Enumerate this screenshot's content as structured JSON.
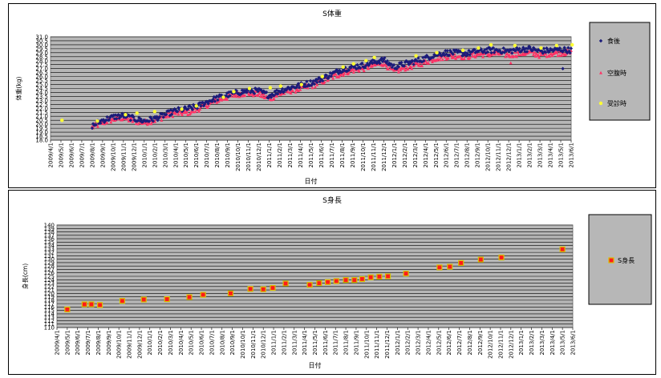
{
  "colors": {
    "plot_bg": "#b7b7b7",
    "grid": "#000000",
    "series_after_meal": "#1c1c7a",
    "series_fasting": "#ff3366",
    "series_visit": "#ffff33",
    "height_marker_fill": "#ff1a1a",
    "height_marker_edge": "#d8c000"
  },
  "chart_data": [
    {
      "type": "scatter",
      "title": "S体重",
      "xlabel": "日付",
      "ylabel": "体重(kg)",
      "ylim": [
        18.0,
        31.0
      ],
      "ytick_step": 0.5,
      "ytick_labels": [
        "18.0",
        "18.5",
        "19.0",
        "19.5",
        "20.0",
        "20.5",
        "21.0",
        "21.5",
        "22.0",
        "22.5",
        "23.0",
        "23.5",
        "24.0",
        "24.5",
        "25.0",
        "25.5",
        "26.0",
        "26.5",
        "27.0",
        "27.5",
        "28.0",
        "28.5",
        "29.0",
        "29.5",
        "30.0",
        "30.5",
        "31.0"
      ],
      "xtick_labels": [
        "2009/4/1",
        "2009/5/1",
        "2009/6/1",
        "2009/7/1",
        "2009/8/1",
        "2009/9/1",
        "2009/10/1",
        "2009/11/1",
        "2009/12/1",
        "2010/1/1",
        "2010/2/1",
        "2010/3/1",
        "2010/4/1",
        "2010/5/1",
        "2010/6/1",
        "2010/7/1",
        "2010/8/1",
        "2010/9/1",
        "2010/10/1",
        "2010/11/1",
        "2010/12/1",
        "2011/1/1",
        "2011/2/1",
        "2011/3/1",
        "2011/4/1",
        "2011/5/1",
        "2011/6/1",
        "2011/7/1",
        "2011/8/1",
        "2011/9/1",
        "2011/10/1",
        "2011/11/1",
        "2011/12/1",
        "2012/1/1",
        "2012/2/1",
        "2012/3/1",
        "2012/4/1",
        "2012/5/1",
        "2012/6/1",
        "2012/7/1",
        "2012/8/1",
        "2012/9/1",
        "2012/10/1",
        "2012/11/1",
        "2012/12/1",
        "2013/1/1",
        "2013/2/1",
        "2013/3/1",
        "2013/4/1",
        "2013/5/1",
        "2013/6/1"
      ],
      "x_unit": "months since 2009/4/1",
      "legend_position": "right",
      "grid": true,
      "series": [
        {
          "name": "食後",
          "marker": "diamond",
          "trend": [
            [
              4.0,
              19.8
            ],
            [
              5.0,
              20.5
            ],
            [
              6.0,
              20.9
            ],
            [
              7.0,
              21.1
            ],
            [
              8.0,
              20.7
            ],
            [
              9.0,
              20.4
            ],
            [
              10.0,
              20.7
            ],
            [
              11.0,
              21.2
            ],
            [
              12.0,
              21.7
            ],
            [
              13.0,
              21.9
            ],
            [
              14.0,
              22.2
            ],
            [
              15.0,
              22.8
            ],
            [
              16.0,
              23.3
            ],
            [
              17.0,
              23.7
            ],
            [
              18.0,
              24.0
            ],
            [
              19.0,
              24.2
            ],
            [
              20.0,
              24.2
            ],
            [
              21.0,
              23.6
            ],
            [
              22.0,
              24.2
            ],
            [
              23.0,
              24.6
            ],
            [
              24.0,
              24.9
            ],
            [
              25.0,
              25.2
            ],
            [
              26.0,
              25.7
            ],
            [
              27.0,
              26.3
            ],
            [
              28.0,
              26.9
            ],
            [
              29.0,
              27.2
            ],
            [
              30.0,
              27.4
            ],
            [
              31.0,
              27.8
            ],
            [
              32.0,
              28.1
            ],
            [
              33.0,
              27.2
            ],
            [
              34.0,
              27.6
            ],
            [
              35.0,
              27.9
            ],
            [
              36.0,
              28.3
            ],
            [
              37.0,
              28.8
            ],
            [
              38.0,
              29.0
            ],
            [
              39.0,
              29.0
            ],
            [
              40.0,
              28.9
            ],
            [
              41.0,
              29.2
            ],
            [
              42.0,
              29.3
            ],
            [
              43.0,
              29.3
            ],
            [
              44.0,
              29.2
            ],
            [
              45.0,
              29.4
            ],
            [
              46.0,
              29.5
            ],
            [
              47.0,
              29.2
            ],
            [
              48.0,
              29.3
            ],
            [
              49.0,
              29.4
            ],
            [
              50.0,
              29.3
            ]
          ],
          "outliers": [
            [
              49.2,
              27.0
            ]
          ]
        },
        {
          "name": "空腹時",
          "marker": "triangle",
          "trend": [
            [
              4.0,
              19.6
            ],
            [
              5.0,
              20.2
            ],
            [
              6.0,
              20.6
            ],
            [
              7.0,
              20.8
            ],
            [
              8.0,
              20.4
            ],
            [
              9.0,
              20.2
            ],
            [
              10.0,
              20.5
            ],
            [
              11.0,
              21.0
            ],
            [
              12.0,
              21.4
            ],
            [
              13.0,
              21.4
            ],
            [
              14.0,
              21.8
            ],
            [
              15.0,
              22.4
            ],
            [
              16.0,
              23.0
            ],
            [
              17.0,
              23.4
            ],
            [
              18.0,
              23.8
            ],
            [
              19.0,
              23.9
            ],
            [
              20.0,
              23.8
            ],
            [
              21.0,
              23.2
            ],
            [
              22.0,
              23.8
            ],
            [
              23.0,
              24.2
            ],
            [
              24.0,
              24.5
            ],
            [
              25.0,
              24.8
            ],
            [
              26.0,
              25.3
            ],
            [
              27.0,
              25.9
            ],
            [
              28.0,
              26.4
            ],
            [
              29.0,
              26.8
            ],
            [
              30.0,
              27.0
            ],
            [
              31.0,
              27.4
            ],
            [
              32.0,
              27.7
            ],
            [
              33.0,
              26.6
            ],
            [
              34.0,
              27.1
            ],
            [
              35.0,
              27.4
            ],
            [
              36.0,
              27.8
            ],
            [
              37.0,
              28.3
            ],
            [
              38.0,
              28.5
            ],
            [
              39.0,
              28.6
            ],
            [
              40.0,
              28.5
            ],
            [
              41.0,
              28.8
            ],
            [
              42.0,
              28.8
            ],
            [
              43.0,
              28.9
            ],
            [
              44.0,
              28.7
            ],
            [
              45.0,
              28.9
            ],
            [
              46.0,
              29.0
            ],
            [
              47.0,
              28.7
            ],
            [
              48.0,
              28.9
            ],
            [
              49.0,
              29.0
            ],
            [
              50.0,
              29.0
            ]
          ],
          "outliers": [
            [
              44.2,
              27.7
            ]
          ]
        },
        {
          "name": "受診時",
          "marker": "dot",
          "points": [
            [
              1.1,
              20.5
            ],
            [
              4.5,
              20.4
            ],
            [
              7.2,
              21.2
            ],
            [
              8.3,
              21.4
            ],
            [
              10.0,
              21.6
            ],
            [
              12.6,
              21.9
            ],
            [
              14.0,
              22.3
            ],
            [
              16.6,
              23.4
            ],
            [
              17.6,
              24.1
            ],
            [
              19.1,
              24.5
            ],
            [
              21.1,
              24.6
            ],
            [
              22.1,
              24.8
            ],
            [
              24.1,
              25.0
            ],
            [
              26.1,
              26.0
            ],
            [
              28.1,
              27.2
            ],
            [
              29.1,
              27.6
            ],
            [
              30.3,
              28.0
            ],
            [
              31.1,
              28.4
            ],
            [
              35.1,
              28.6
            ],
            [
              37.1,
              29.0
            ],
            [
              39.6,
              29.3
            ],
            [
              41.1,
              29.6
            ],
            [
              42.3,
              30.0
            ],
            [
              44.6,
              29.9
            ],
            [
              47.1,
              29.6
            ],
            [
              48.6,
              29.9
            ],
            [
              50.1,
              30.0
            ]
          ]
        }
      ]
    },
    {
      "type": "scatter",
      "title": "S身長",
      "xlabel": "日付",
      "ylabel": "身長(cm)",
      "ylim": [
        110,
        140
      ],
      "ytick_labels": [
        "110",
        "111",
        "112",
        "113",
        "114",
        "115",
        "116",
        "117",
        "118",
        "119",
        "120",
        "121",
        "122",
        "123",
        "124",
        "125",
        "126",
        "127",
        "128",
        "129",
        "130",
        "131",
        "132",
        "133",
        "134",
        "135",
        "136",
        "137",
        "138",
        "139",
        "140"
      ],
      "xtick_labels": [
        "2009/4/1",
        "2009/5/1",
        "2009/6/1",
        "2009/7/1",
        "2009/8/1",
        "2009/9/1",
        "2009/10/1",
        "2009/11/1",
        "2009/12/1",
        "2010/1/1",
        "2010/2/1",
        "2010/3/1",
        "2010/4/1",
        "2010/5/1",
        "2010/6/1",
        "2010/7/1",
        "2010/8/1",
        "2010/9/1",
        "2010/10/1",
        "2010/11/1",
        "2010/12/1",
        "2011/1/1",
        "2011/2/1",
        "2011/3/1",
        "2011/4/1",
        "2011/5/1",
        "2011/6/1",
        "2011/7/1",
        "2011/8/1",
        "2011/9/1",
        "2011/10/1",
        "2011/11/1",
        "2011/12/1",
        "2012/1/1",
        "2012/2/1",
        "2012/3/1",
        "2012/4/1",
        "2012/5/1",
        "2012/6/1",
        "2012/7/1",
        "2012/8/1",
        "2012/9/1",
        "2012/10/1",
        "2012/11/1",
        "2012/12/1",
        "2013/1/1",
        "2013/2/1",
        "2013/3/1",
        "2013/4/1",
        "2013/5/1",
        "2013/6/1"
      ],
      "x_unit": "months since 2009/4/1",
      "legend_position": "right",
      "grid": true,
      "series": [
        {
          "name": "S身長",
          "marker": "square",
          "points": [
            [
              1.2,
              115.3
            ],
            [
              3.2,
              116.8
            ],
            [
              4.0,
              116.8
            ],
            [
              5.0,
              116.6
            ],
            [
              7.6,
              117.8
            ],
            [
              10.1,
              118.2
            ],
            [
              12.8,
              118.3
            ],
            [
              15.4,
              118.9
            ],
            [
              17.0,
              119.6
            ],
            [
              20.2,
              120.0
            ],
            [
              22.5,
              121.3
            ],
            [
              24.0,
              121.2
            ],
            [
              25.1,
              121.6
            ],
            [
              26.6,
              122.9
            ],
            [
              29.4,
              122.5
            ],
            [
              30.5,
              123.0
            ],
            [
              31.5,
              123.3
            ],
            [
              32.5,
              123.6
            ],
            [
              33.6,
              123.9
            ],
            [
              34.6,
              123.9
            ],
            [
              35.5,
              124.2
            ],
            [
              36.5,
              124.7
            ],
            [
              37.5,
              124.9
            ],
            [
              38.5,
              125.0
            ],
            [
              40.6,
              125.8
            ],
            [
              44.5,
              127.6
            ],
            [
              45.7,
              127.8
            ],
            [
              47.0,
              128.9
            ],
            [
              49.3,
              129.9
            ],
            [
              51.7,
              130.5
            ],
            [
              58.8,
              132.9
            ]
          ]
        }
      ]
    }
  ]
}
